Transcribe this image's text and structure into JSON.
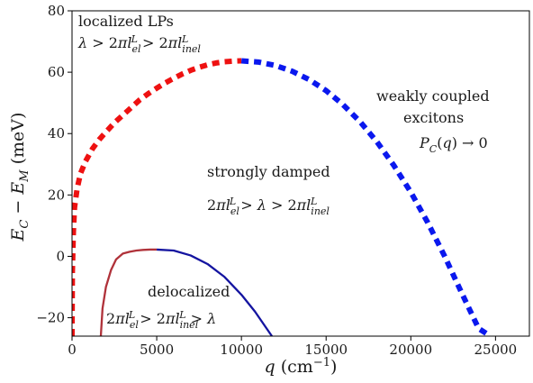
{
  "chart_data": {
    "type": "line",
    "xlabel": "q (cm⁻¹)",
    "ylabel": "E_C − E_M (meV)",
    "xlim": [
      0,
      27000
    ],
    "ylim": [
      -26,
      80
    ],
    "x_ticks": [
      0,
      5000,
      10000,
      15000,
      20000,
      25000
    ],
    "x_tick_labels": [
      "0",
      "5000",
      "10000",
      "15000",
      "20000",
      "25000"
    ],
    "y_ticks": [
      -20,
      0,
      20,
      40,
      60,
      80
    ],
    "y_tick_labels": [
      "−20",
      "0",
      "20",
      "40",
      "60",
      "80"
    ],
    "grid": false,
    "legend": "none",
    "series": [
      {
        "style": "dashed-thick",
        "color": "#ee1111",
        "x": [
          0,
          20,
          80,
          150,
          300,
          500,
          800,
          1200,
          1600,
          2000,
          2500,
          3000,
          3500,
          4000,
          4500,
          5000,
          5500,
          6000,
          6500,
          7000,
          7500,
          8000,
          8500,
          9000,
          9500,
          10000
        ],
        "y": [
          -26,
          -5,
          8,
          16,
          22,
          27,
          31,
          35,
          38,
          40.5,
          43.5,
          46,
          48.5,
          51,
          53,
          54.8,
          56.5,
          58,
          59.4,
          60.6,
          61.6,
          62.4,
          63,
          63.4,
          63.6,
          63.7
        ]
      },
      {
        "style": "dashed-thick",
        "color": "#0a18ee",
        "x": [
          10000,
          11000,
          12000,
          13000,
          14000,
          15000,
          16000,
          17000,
          18000,
          19000,
          20000,
          21000,
          22000,
          23000,
          24000,
          24700
        ],
        "y": [
          63.7,
          63.3,
          62.2,
          60.3,
          57.6,
          54,
          49.4,
          43.9,
          37.3,
          29.6,
          20.9,
          11,
          0,
          -11.9,
          -23.5,
          -26
        ]
      },
      {
        "style": "solid",
        "color": "#b0323a",
        "x": [
          1700,
          1800,
          2000,
          2300,
          2600,
          3000,
          3400,
          3800,
          4200,
          4600,
          5000
        ],
        "y": [
          -26,
          -17,
          -10,
          -4.5,
          -1,
          0.9,
          1.5,
          1.9,
          2.1,
          2.2,
          2.2
        ]
      },
      {
        "style": "solid",
        "color": "#1414a0",
        "x": [
          5000,
          6000,
          7000,
          8000,
          9000,
          10000,
          10800,
          11400,
          11800
        ],
        "y": [
          2.2,
          1.9,
          0.3,
          -2.5,
          -6.7,
          -12.5,
          -18,
          -22.8,
          -26
        ]
      }
    ],
    "annotations": [
      {
        "text": "localized LPs"
      },
      {
        "text": "λ > 2πl_el^L > 2πl_inel^L"
      },
      {
        "text": "weakly coupled"
      },
      {
        "text": "excitons"
      },
      {
        "text": "P_C(q) → 0"
      },
      {
        "text": "strongly damped"
      },
      {
        "text": "2πl_el^L > λ > 2πl_inel^L"
      },
      {
        "text": "delocalized"
      },
      {
        "text": "2πl_el^L > 2πl_inel^L > λ"
      }
    ]
  }
}
